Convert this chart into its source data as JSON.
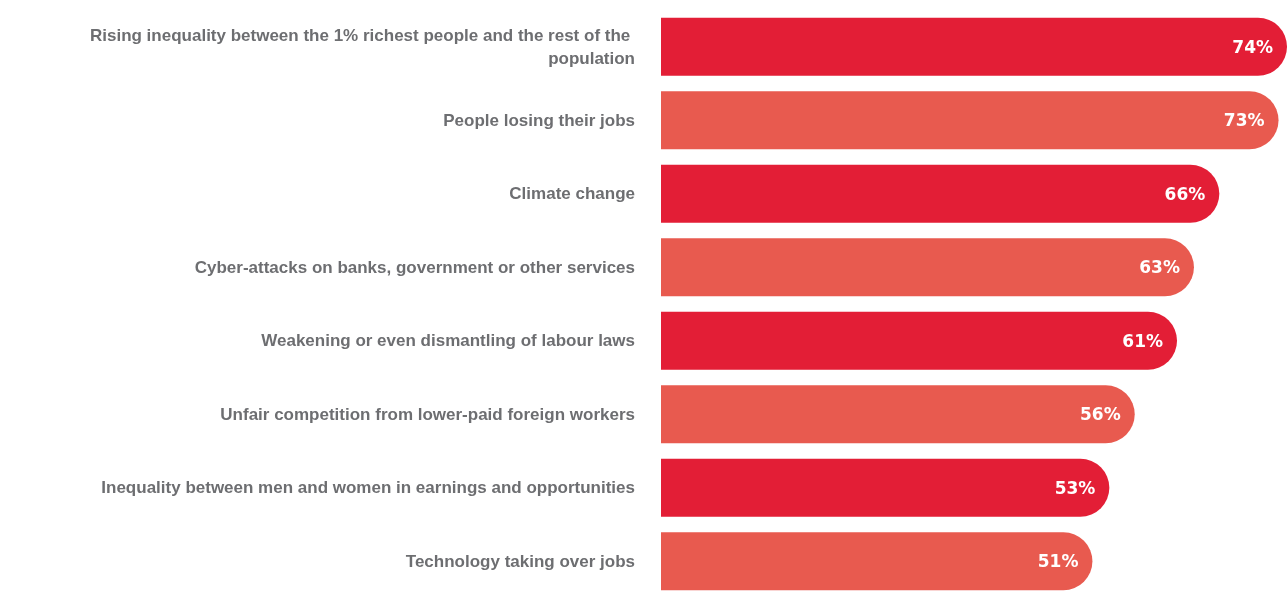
{
  "chart_data": {
    "type": "bar",
    "orientation": "horizontal",
    "categories": [
      "Rising inequality between the 1% richest people and the rest of the population",
      "People losing their jobs",
      "Climate change",
      "Cyber-attacks on banks, government or other services",
      "Weakening or even dismantling of labour laws",
      "Unfair competition from lower-paid foreign workers",
      "Inequality between men and women in earnings and opportunities",
      "Technology taking over jobs"
    ],
    "values": [
      74,
      73,
      66,
      63,
      61,
      56,
      53,
      51
    ],
    "colors": [
      "#e31e36",
      "#e85a4f",
      "#e31e36",
      "#e85a4f",
      "#e31e36",
      "#e85a4f",
      "#e31e36",
      "#e85a4f"
    ],
    "value_labels": [
      "74%",
      "73%",
      "66%",
      "63%",
      "61%",
      "56%",
      "53%",
      "51%"
    ]
  }
}
